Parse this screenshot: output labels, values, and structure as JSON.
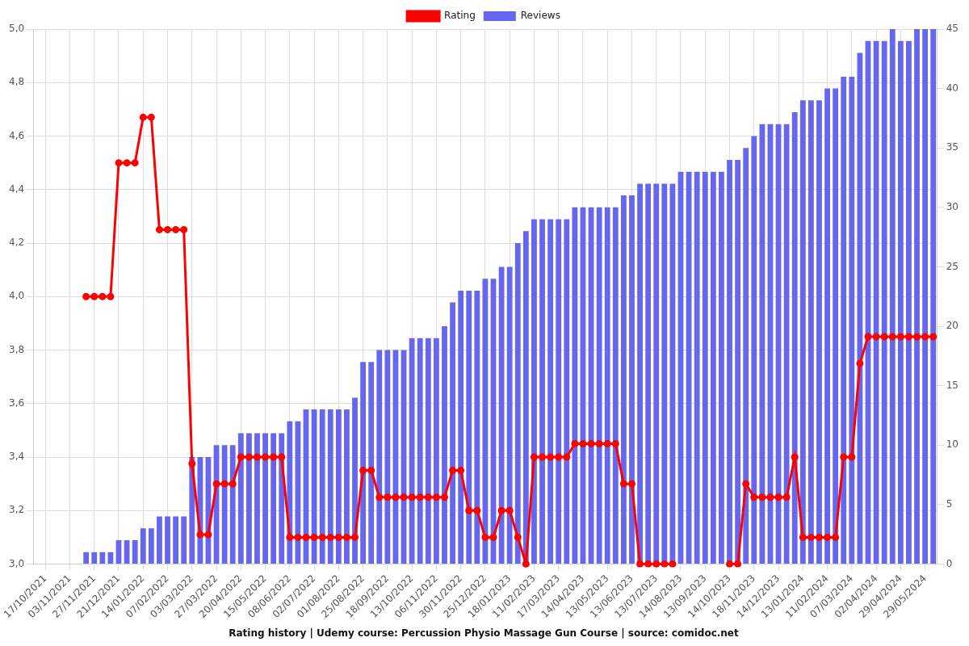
{
  "chart_data": {
    "type": "bar",
    "title": "Rating history | Udemy course: Percussion Physio Massage Gun Course | source: comidoc.net",
    "categories": [
      null,
      "17/10/2021",
      null,
      null,
      "03/11/2021",
      null,
      null,
      "27/11/2021",
      null,
      null,
      "21/12/2021",
      null,
      null,
      "14/01/2022",
      null,
      null,
      "07/02/2022",
      null,
      null,
      "03/03/2022",
      null,
      null,
      "27/03/2022",
      null,
      null,
      "20/04/2022",
      null,
      null,
      "15/05/2022",
      null,
      null,
      "08/06/2022",
      null,
      null,
      "02/07/2022",
      null,
      null,
      "01/08/2022",
      null,
      null,
      "25/08/2022",
      null,
      null,
      "18/09/2022",
      null,
      null,
      "13/10/2022",
      null,
      null,
      "06/11/2022",
      null,
      null,
      "30/11/2022",
      null,
      null,
      "25/12/2022",
      null,
      null,
      "18/01/2023",
      null,
      null,
      "11/02/2023",
      null,
      null,
      "17/03/2023",
      null,
      null,
      "14/04/2023",
      null,
      null,
      "13/05/2023",
      null,
      null,
      "13/06/2023",
      null,
      null,
      "13/07/2023",
      null,
      null,
      "14/08/2023",
      null,
      null,
      "13/09/2023",
      null,
      null,
      "14/10/2023",
      null,
      null,
      "18/11/2023",
      null,
      null,
      "14/12/2023",
      null,
      null,
      "13/01/2024",
      null,
      null,
      "11/02/2024",
      null,
      null,
      "07/03/2024",
      null,
      null,
      "02/04/2024",
      null,
      null,
      "29/04/2024",
      null,
      null,
      "29/05/2024",
      null
    ],
    "series": [
      {
        "name": "Rating",
        "type": "line",
        "color": "#ff0000",
        "marker": "circle",
        "line_style": "solid",
        "values": [
          null,
          null,
          null,
          null,
          null,
          null,
          4.0,
          4.0,
          4.0,
          4.0,
          4.5,
          4.5,
          4.5,
          4.67,
          4.67,
          4.25,
          4.25,
          4.25,
          4.25,
          3.375,
          3.11,
          3.11,
          3.3,
          3.3,
          3.3,
          3.4,
          3.4,
          3.4,
          3.4,
          3.4,
          3.4,
          3.1,
          3.1,
          3.1,
          3.1,
          3.1,
          3.1,
          3.1,
          3.1,
          3.1,
          3.35,
          3.35,
          3.25,
          3.25,
          3.25,
          3.25,
          3.25,
          3.25,
          3.25,
          3.25,
          3.25,
          3.35,
          3.35,
          3.2,
          3.2,
          3.1,
          3.1,
          3.2,
          3.2,
          3.1,
          3.0,
          3.4,
          3.4,
          3.4,
          3.4,
          3.4,
          3.45,
          3.45,
          3.45,
          3.45,
          3.45,
          3.45,
          3.3,
          3.3,
          3.0,
          3.0,
          3.0,
          3.0,
          3.0,
          null,
          null,
          null,
          null,
          null,
          null,
          3.0,
          3.0,
          3.3,
          3.25,
          3.25,
          3.25,
          3.25,
          3.25,
          3.4,
          3.1,
          3.1,
          3.1,
          3.1,
          3.1,
          3.4,
          3.4,
          3.75,
          3.85,
          3.85,
          3.85,
          3.85,
          3.85,
          3.85,
          3.85,
          3.85,
          3.85
        ]
      },
      {
        "name": "Reviews",
        "type": "bar",
        "color": "#6666ee",
        "axis": "y2",
        "values": [
          null,
          null,
          null,
          null,
          null,
          null,
          1,
          1,
          1,
          1,
          2,
          2,
          2,
          3,
          3,
          4,
          4,
          4,
          4,
          9,
          9,
          9,
          10,
          10,
          10,
          11,
          11,
          11,
          11,
          11,
          11,
          12,
          12,
          13,
          13,
          13,
          13,
          13,
          13,
          14,
          17,
          17,
          18,
          18,
          18,
          18,
          19,
          19,
          19,
          19,
          20,
          22,
          23,
          23,
          23,
          24,
          24,
          25,
          25,
          27,
          28,
          29,
          29,
          29,
          29,
          29,
          30,
          30,
          30,
          30,
          30,
          30,
          31,
          31,
          32,
          32,
          32,
          32,
          32,
          33,
          33,
          33,
          33,
          33,
          33,
          34,
          34,
          35,
          36,
          37,
          37,
          37,
          37,
          38,
          39,
          39,
          39,
          40,
          40,
          41,
          41,
          43,
          44,
          44,
          44,
          45,
          44,
          44,
          45,
          45,
          45
        ]
      }
    ],
    "ylim": [
      3,
      5
    ],
    "yticks": [
      {
        "value": 3,
        "label": "3,0"
      },
      {
        "value": 3.2,
        "label": "3,2"
      },
      {
        "value": 3.4,
        "label": "3,4"
      },
      {
        "value": 3.6,
        "label": "3,6"
      },
      {
        "value": 3.8,
        "label": "3,8"
      },
      {
        "value": 4,
        "label": "4,0"
      },
      {
        "value": 4.2,
        "label": "4,2"
      },
      {
        "value": 4.4,
        "label": "4,4"
      },
      {
        "value": 4.6,
        "label": "4,6"
      },
      {
        "value": 4.8,
        "label": "4,8"
      },
      {
        "value": 5,
        "label": "5,0"
      }
    ],
    "y2lim": [
      0,
      45
    ],
    "y2ticks": [
      0,
      5,
      10,
      15,
      20,
      25,
      30,
      35,
      40,
      45
    ],
    "grid": true,
    "legend": "top"
  }
}
